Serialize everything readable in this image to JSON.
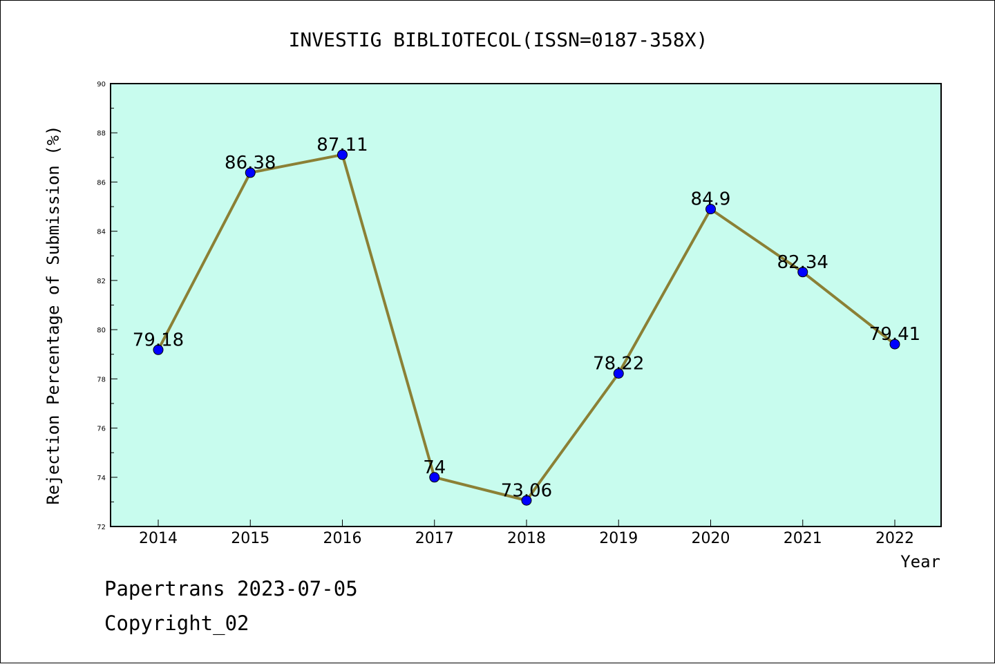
{
  "footer": {
    "line1": "Papertrans 2023-07-05",
    "line2": "Copyright_02"
  },
  "chart_data": {
    "type": "line",
    "title": "INVESTIG BIBLIOTECOL(ISSN=0187-358X)",
    "xlabel": "Year",
    "ylabel": "Rejection Percentage of Submission (%)",
    "categories": [
      "2014",
      "2015",
      "2016",
      "2017",
      "2018",
      "2019",
      "2020",
      "2021",
      "2022"
    ],
    "series": [
      {
        "values": [
          79.18,
          86.38,
          87.11,
          74,
          73.06,
          78.22,
          84.9,
          82.34,
          79.41
        ]
      }
    ],
    "data_labels": [
      "79.18",
      "86.38",
      "87.11",
      "74",
      "73.06",
      "78.22",
      "84.9",
      "82.34",
      "79.41"
    ],
    "ylim": [
      72,
      90
    ],
    "yticks": [
      72,
      74,
      76,
      78,
      80,
      82,
      84,
      86,
      88,
      90
    ],
    "grid": false,
    "legend": "none",
    "colors": {
      "plot_background": "#c8fcee",
      "line": "#8b8035",
      "marker": "#0000ff"
    }
  }
}
